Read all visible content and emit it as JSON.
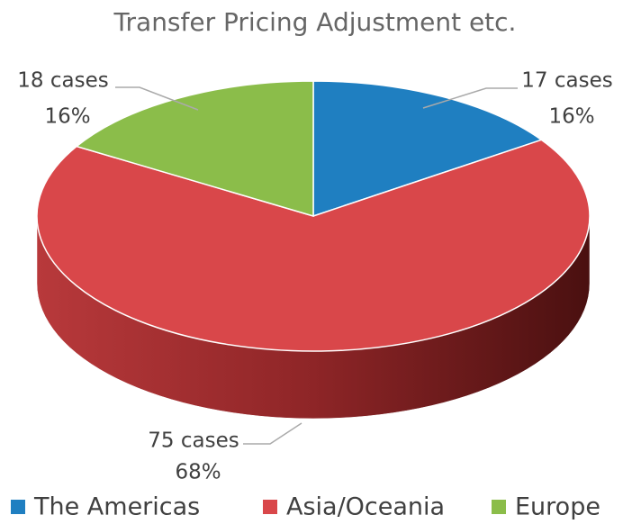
{
  "chart_data": {
    "type": "pie",
    "title": "Transfer Pricing Adjustment etc.",
    "categories": [
      "The Americas",
      "Asia/Oceania",
      "Europe"
    ],
    "values": [
      17,
      75,
      18
    ],
    "value_labels": [
      "17 cases",
      "75 cases",
      "18 cases"
    ],
    "percent_labels": [
      "16%",
      "68%",
      "16%"
    ],
    "colors": [
      "#1f7fc1",
      "#d9474a",
      "#8bbd4a"
    ],
    "legend": "bottom"
  }
}
